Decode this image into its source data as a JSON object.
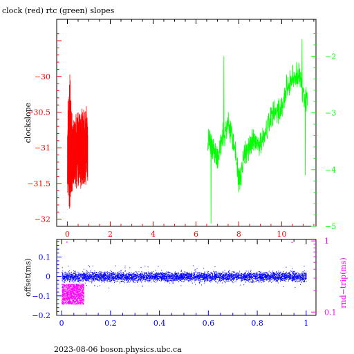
{
  "title": "clock (red) rtc (green) slopes",
  "footer": "2023-08-06 boson.physics.ubc.ca",
  "chart_data": [
    {
      "type": "line",
      "panel": "top",
      "ylabel": "clockslope",
      "x_range": [
        -0.5,
        11.6
      ],
      "x_ticks": [
        0,
        2,
        4,
        6,
        8,
        10
      ],
      "y_left_range": [
        -32.1,
        -29.2
      ],
      "y_left_ticks": [
        -32,
        -31.5,
        -31,
        -30.5,
        -30
      ],
      "y_left_tick_labels": [
        "−32",
        "−31.5",
        "−31",
        "−30.5",
        "−30"
      ],
      "y_right_range": [
        -5.0,
        -1.35
      ],
      "y_right_ticks": [
        -5,
        -4,
        -3,
        -2
      ],
      "y_right_tick_labels": [
        "−5",
        "−4",
        "−3",
        "−2"
      ],
      "grid": false,
      "series": [
        {
          "axis": "left",
          "color": "#ff0000",
          "style": "dense-noise",
          "x_start": 0.0,
          "x_end": 0.95,
          "envelope_x": [
            0.0,
            0.1,
            0.2,
            0.3,
            0.4,
            0.5,
            0.6,
            0.7,
            0.8,
            0.9,
            0.95
          ],
          "envelope_low": [
            -31.6,
            -31.95,
            -31.7,
            -31.55,
            -31.6,
            -31.55,
            -31.6,
            -31.5,
            -31.55,
            -31.5,
            -31.5
          ],
          "envelope_high": [
            -30.5,
            -29.8,
            -30.5,
            -30.6,
            -30.5,
            -30.5,
            -30.5,
            -30.4,
            -30.5,
            -30.4,
            -30.6
          ]
        },
        {
          "axis": "right",
          "color": "#00ff00",
          "style": "noisy-line",
          "x_start": 6.55,
          "x_end": 11.2,
          "trend_x": [
            6.55,
            6.8,
            7.0,
            7.2,
            7.5,
            7.8,
            8.0,
            8.3,
            8.6,
            9.0,
            9.3,
            9.6,
            9.9,
            10.2,
            10.5,
            10.8,
            11.0,
            11.2
          ],
          "trend_y": [
            -3.5,
            -3.6,
            -3.85,
            -3.5,
            -3.2,
            -3.6,
            -4.2,
            -3.7,
            -3.5,
            -3.6,
            -3.3,
            -3.0,
            -3.0,
            -2.6,
            -2.4,
            -2.3,
            -2.7,
            -2.8
          ],
          "spikes": [
            {
              "x": 6.7,
              "y": -4.95
            },
            {
              "x": 7.3,
              "y": -2.0
            },
            {
              "x": 8.0,
              "y": -4.4
            },
            {
              "x": 10.95,
              "y": -1.7
            },
            {
              "x": 11.1,
              "y": -4.1
            }
          ]
        }
      ]
    },
    {
      "type": "scatter",
      "panel": "bottom",
      "ylabel_left": "offset(ms)",
      "ylabel_right": "rnd−trip(ms)",
      "x_range": [
        -0.02,
        1.04
      ],
      "x_ticks": [
        0,
        0.2,
        0.4,
        0.6,
        0.8,
        1
      ],
      "x_tick_labels": [
        "0",
        "0.2",
        "0.4",
        "0.6",
        "0.8",
        "1"
      ],
      "y_left_range": [
        -0.2,
        0.19
      ],
      "y_left_ticks": [
        -0.2,
        -0.1,
        0,
        0.1
      ],
      "y_left_tick_labels": [
        "−0.2",
        "−0.1",
        "0",
        "0.1"
      ],
      "y_right_scale": "log",
      "y_right_range": [
        0.09,
        1.05
      ],
      "y_right_ticks": [
        0.1,
        1
      ],
      "y_right_tick_labels": [
        "0.1",
        "1"
      ],
      "series": [
        {
          "axis": "left",
          "color": "#0000ff",
          "kind": "offset",
          "x_start": 0.0,
          "x_end": 1.0,
          "center_y": 0.0,
          "band_halfwidth": 0.03,
          "outlier_spread": 0.06
        },
        {
          "axis": "right",
          "color": "#ff00ff",
          "kind": "round-trip",
          "x_start": 0.0,
          "x_end": 0.09,
          "y_center": 0.17,
          "y_low": 0.13,
          "y_high": 0.25,
          "scattered_points": [
            {
              "x": 0.02,
              "y": 0.98
            },
            {
              "x": 0.68,
              "y": 0.34
            },
            {
              "x": 0.94,
              "y": 0.97
            }
          ]
        }
      ]
    }
  ]
}
